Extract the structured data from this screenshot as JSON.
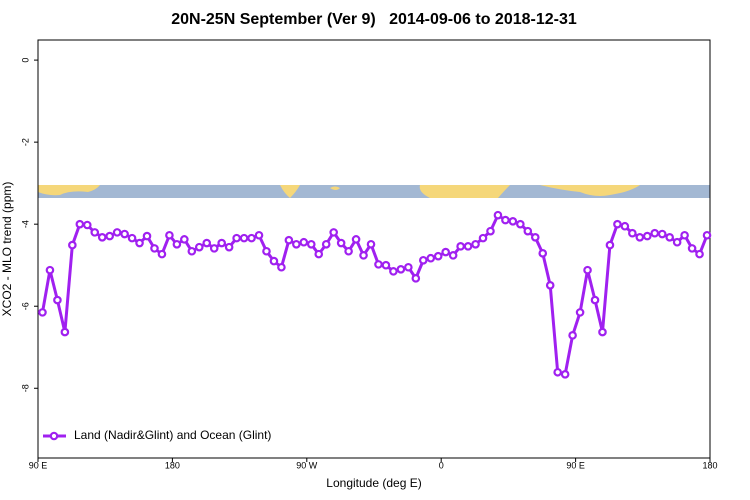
{
  "chart_data": {
    "type": "line",
    "title": "20N-25N September (Ver 9)   2014-09-06 to 2018-12-31",
    "x_label": "Longitude (deg E)",
    "y_label": "XCO2 - MLO trend (ppm)",
    "x": [
      93,
      98,
      103,
      108,
      113,
      118,
      123,
      128,
      133,
      138,
      143,
      148,
      153,
      158,
      163,
      168,
      173,
      178,
      183,
      188,
      193,
      198,
      203,
      208,
      213,
      218,
      223,
      228,
      233,
      238,
      243,
      248,
      253,
      258,
      263,
      268,
      273,
      278,
      283,
      288,
      293,
      298,
      303,
      308,
      313,
      318,
      323,
      328,
      333,
      338,
      343,
      348,
      353,
      358,
      363,
      368,
      373,
      378,
      383,
      388,
      393,
      398,
      403,
      408,
      413,
      418,
      423,
      428,
      433,
      438,
      443,
      448,
      453,
      458,
      463,
      468,
      473,
      478,
      483,
      488,
      493,
      498,
      503,
      508,
      513,
      518,
      523,
      528,
      533,
      538
    ],
    "series": [
      {
        "name": "Land (Nadir&Glint) and Ocean (Glint)",
        "color": "#a020f0",
        "values": [
          -6.15,
          -5.12,
          -5.85,
          -6.63,
          -4.51,
          -4.0,
          -4.02,
          -4.2,
          -4.32,
          -4.29,
          -4.2,
          -4.24,
          -4.34,
          -4.46,
          -4.29,
          -4.59,
          -4.73,
          -4.27,
          -4.49,
          -4.37,
          -4.66,
          -4.56,
          -4.46,
          -4.59,
          -4.46,
          -4.56,
          -4.34,
          -4.34,
          -4.34,
          -4.27,
          -4.66,
          -4.9,
          -5.05,
          -4.39,
          -4.49,
          -4.44,
          -4.49,
          -4.73,
          -4.49,
          -4.2,
          -4.46,
          -4.66,
          -4.37,
          -4.76,
          -4.49,
          -4.98,
          -5.0,
          -5.15,
          -5.1,
          -5.05,
          -5.32,
          -4.88,
          -4.83,
          -4.78,
          -4.68,
          -4.76,
          -4.54,
          -4.54,
          -4.49,
          -4.34,
          -4.17,
          -3.78,
          -3.9,
          -3.93,
          -4.0,
          -4.17,
          -4.32,
          -4.71,
          -5.49,
          -7.61,
          -7.66,
          -6.71,
          -6.15,
          -5.12,
          -5.85,
          -6.63,
          -4.51,
          -4.0,
          -4.05,
          -4.22,
          -4.32,
          -4.29,
          -4.22,
          -4.24,
          -4.32,
          -4.44,
          -4.27,
          -4.59,
          -4.73,
          -4.27
        ]
      }
    ],
    "xlim": [
      90,
      540
    ],
    "ylim": [
      -9.7,
      0.49
    ],
    "xticks": [
      {
        "value": 90,
        "label": "90 E"
      },
      180,
      {
        "value": 270,
        "label": "90 W"
      },
      {
        "value": 360,
        "label": "0"
      },
      {
        "value": 450,
        "label": "90 E"
      },
      {
        "value": 540,
        "label": "180"
      }
    ],
    "yticks": [
      0,
      -2,
      -4,
      -6,
      -8
    ],
    "legend": "bottom-left"
  }
}
